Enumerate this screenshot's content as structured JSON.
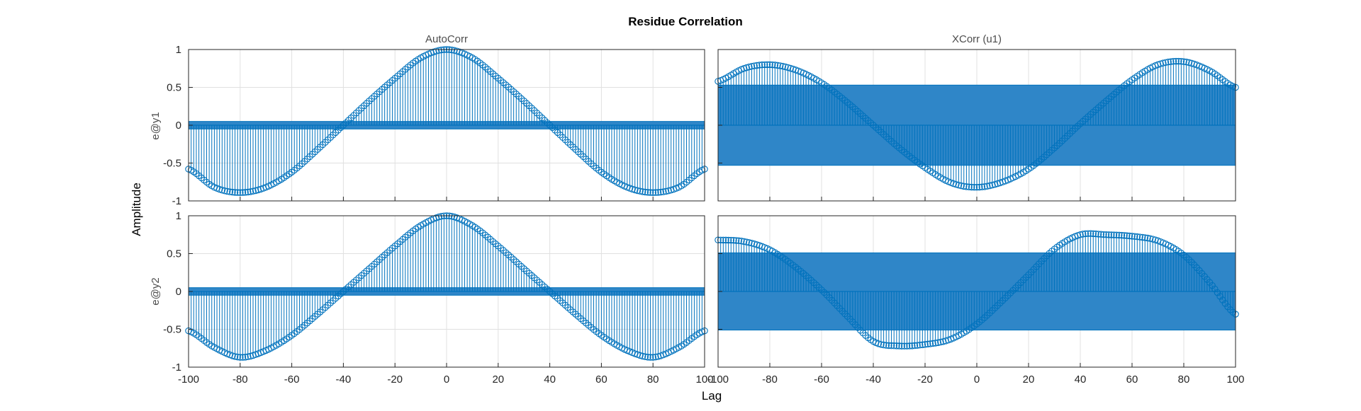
{
  "figure": {
    "title": "Residue Correlation",
    "xlabel": "Lag",
    "ylabel": "Amplitude"
  },
  "colors": {
    "data": "#0072bd",
    "band": "#2f86c8",
    "axes_edge": "#262626",
    "grid": "#e0e0e0"
  },
  "chart_data": [
    {
      "type": "stem",
      "column_title": "AutoCorr",
      "row_label": "e@y1",
      "xlim": [
        -100,
        100
      ],
      "ylim": [
        -1,
        1
      ],
      "x_ticks": [
        "-100",
        "-80",
        "-60",
        "-40",
        "-20",
        "0",
        "20",
        "40",
        "60",
        "80",
        "100"
      ],
      "y_ticks": [
        "-1",
        "-0.5",
        "0",
        "0.5",
        "1"
      ],
      "confidence_bound": 0.05,
      "grid": true,
      "series_points": [
        [
          -100,
          -0.58
        ],
        [
          -90,
          -0.82
        ],
        [
          -80,
          -0.89
        ],
        [
          -70,
          -0.82
        ],
        [
          -60,
          -0.62
        ],
        [
          -50,
          -0.32
        ],
        [
          -40,
          0.0
        ],
        [
          -30,
          0.32
        ],
        [
          -20,
          0.62
        ],
        [
          -10,
          0.89
        ],
        [
          0,
          1.0
        ],
        [
          10,
          0.89
        ],
        [
          20,
          0.62
        ],
        [
          30,
          0.32
        ],
        [
          40,
          0.0
        ],
        [
          50,
          -0.32
        ],
        [
          60,
          -0.62
        ],
        [
          70,
          -0.82
        ],
        [
          80,
          -0.89
        ],
        [
          90,
          -0.82
        ],
        [
          100,
          -0.58
        ]
      ]
    },
    {
      "type": "stem",
      "column_title": "XCorr (u1)",
      "row_label": "e@y1",
      "xlim": [
        -100,
        100
      ],
      "ylim": [
        -1,
        1
      ],
      "x_ticks": [
        "-100",
        "-80",
        "-60",
        "-40",
        "-20",
        "0",
        "20",
        "40",
        "60",
        "80",
        "100"
      ],
      "y_ticks": [
        "-1",
        "-0.5",
        "0",
        "0.5",
        "1"
      ],
      "confidence_bound": 0.53,
      "grid": true,
      "series_points": [
        [
          -100,
          0.58
        ],
        [
          -90,
          0.75
        ],
        [
          -80,
          0.8
        ],
        [
          -70,
          0.73
        ],
        [
          -60,
          0.56
        ],
        [
          -50,
          0.3
        ],
        [
          -40,
          0.0
        ],
        [
          -30,
          -0.3
        ],
        [
          -20,
          -0.56
        ],
        [
          -10,
          -0.76
        ],
        [
          0,
          -0.82
        ],
        [
          10,
          -0.75
        ],
        [
          20,
          -0.58
        ],
        [
          30,
          -0.3
        ],
        [
          40,
          0.02
        ],
        [
          50,
          0.32
        ],
        [
          60,
          0.6
        ],
        [
          70,
          0.8
        ],
        [
          80,
          0.84
        ],
        [
          90,
          0.72
        ],
        [
          100,
          0.5
        ]
      ]
    },
    {
      "type": "stem",
      "column_title": "",
      "row_label": "e@y2",
      "xlim": [
        -100,
        100
      ],
      "ylim": [
        -1,
        1
      ],
      "x_ticks": [
        "-100",
        "-80",
        "-60",
        "-40",
        "-20",
        "0",
        "20",
        "40",
        "60",
        "80",
        "100"
      ],
      "y_ticks": [
        "-1",
        "-0.5",
        "0",
        "0.5",
        "1"
      ],
      "confidence_bound": 0.05,
      "grid": true,
      "series_points": [
        [
          -100,
          -0.52
        ],
        [
          -90,
          -0.74
        ],
        [
          -80,
          -0.87
        ],
        [
          -70,
          -0.78
        ],
        [
          -60,
          -0.58
        ],
        [
          -50,
          -0.3
        ],
        [
          -40,
          0.0
        ],
        [
          -30,
          0.3
        ],
        [
          -20,
          0.6
        ],
        [
          -10,
          0.87
        ],
        [
          0,
          1.0
        ],
        [
          10,
          0.87
        ],
        [
          20,
          0.6
        ],
        [
          30,
          0.3
        ],
        [
          40,
          0.0
        ],
        [
          50,
          -0.3
        ],
        [
          60,
          -0.58
        ],
        [
          70,
          -0.78
        ],
        [
          80,
          -0.87
        ],
        [
          90,
          -0.74
        ],
        [
          100,
          -0.52
        ]
      ]
    },
    {
      "type": "stem",
      "column_title": "",
      "row_label": "e@y2",
      "xlim": [
        -100,
        100
      ],
      "ylim": [
        -1,
        1
      ],
      "x_ticks": [
        "-100",
        "-80",
        "-60",
        "-40",
        "-20",
        "0",
        "20",
        "40",
        "60",
        "80",
        "100"
      ],
      "y_ticks": [
        "-1",
        "-0.5",
        "0",
        "0.5",
        "1"
      ],
      "confidence_bound": 0.51,
      "grid": true,
      "series_points": [
        [
          -100,
          0.68
        ],
        [
          -90,
          0.66
        ],
        [
          -80,
          0.55
        ],
        [
          -70,
          0.32
        ],
        [
          -60,
          0.02
        ],
        [
          -50,
          -0.33
        ],
        [
          -40,
          -0.66
        ],
        [
          -30,
          -0.72
        ],
        [
          -20,
          -0.7
        ],
        [
          -10,
          -0.63
        ],
        [
          0,
          -0.43
        ],
        [
          10,
          -0.12
        ],
        [
          20,
          0.22
        ],
        [
          30,
          0.56
        ],
        [
          40,
          0.75
        ],
        [
          50,
          0.75
        ],
        [
          60,
          0.73
        ],
        [
          70,
          0.67
        ],
        [
          80,
          0.48
        ],
        [
          90,
          0.12
        ],
        [
          100,
          -0.3
        ]
      ]
    }
  ]
}
